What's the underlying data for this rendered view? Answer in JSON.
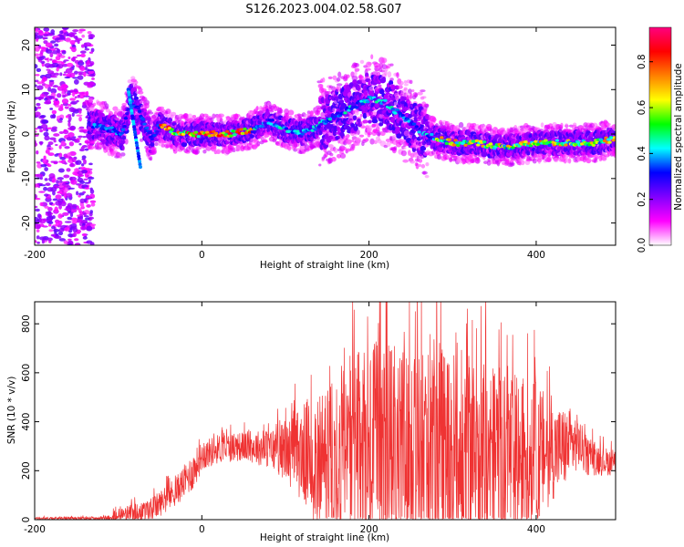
{
  "page": {
    "title": "S126.2023.004.02.58.G07"
  },
  "chart_data": [
    {
      "type": "heatmap",
      "xlabel": "Height of straight line (km)",
      "ylabel": "Frequency (Hz)",
      "xlim": [
        -200,
        495
      ],
      "ylim": [
        -25,
        24
      ],
      "x_ticks": [
        -200,
        0,
        200,
        400
      ],
      "y_ticks": [
        -20,
        -10,
        0,
        10,
        20
      ],
      "colorbar": {
        "label": "Normalized spectral amplitude",
        "range": [
          0,
          0.95
        ],
        "ticks": [
          0.0,
          0.2,
          0.4,
          0.6,
          0.8
        ],
        "colors": [
          "#ffffff",
          "#ff00ff",
          "#8000ff",
          "#0000ff",
          "#00ffff",
          "#00ff00",
          "#ffff00",
          "#ff8000",
          "#ff0000",
          "#ff0080"
        ]
      },
      "ridge": {
        "x": [
          -160,
          -130,
          -110,
          -95,
          -85,
          -75,
          -60,
          -50,
          -30,
          0,
          30,
          60,
          80,
          100,
          120,
          140,
          160,
          180,
          200,
          220,
          240,
          260,
          280,
          300,
          330,
          360,
          400,
          440,
          470,
          495
        ],
        "freq": [
          2,
          2,
          1,
          0,
          8,
          5,
          -1,
          2,
          0,
          0,
          0,
          1,
          3,
          1,
          0,
          2,
          4,
          6,
          8,
          7,
          4,
          1,
          -1,
          -2,
          -2,
          -3,
          -2,
          -2,
          -2,
          -1
        ]
      }
    },
    {
      "type": "line",
      "xlabel": "Height of straight line (km)",
      "ylabel": "SNR (10 * v/v)",
      "xlim": [
        -200,
        495
      ],
      "ylim": [
        0,
        890
      ],
      "x_ticks": [
        -200,
        0,
        200,
        400
      ],
      "y_ticks": [
        0,
        200,
        400,
        600,
        800
      ],
      "color": "#ef3333",
      "envelope": {
        "x": [
          -200,
          -120,
          -100,
          -60,
          -30,
          -10,
          0,
          20,
          50,
          80,
          100,
          120,
          140,
          160,
          180,
          200,
          220,
          240,
          260,
          280,
          300,
          320,
          340,
          360,
          380,
          400,
          420,
          440,
          450,
          460,
          480,
          495
        ],
        "base": [
          5,
          5,
          15,
          40,
          120,
          200,
          260,
          290,
          300,
          290,
          280,
          270,
          250,
          250,
          260,
          270,
          280,
          260,
          270,
          280,
          270,
          260,
          260,
          250,
          260,
          270,
          280,
          300,
          320,
          260,
          240,
          230
        ],
        "spread": [
          5,
          8,
          30,
          50,
          60,
          80,
          60,
          60,
          60,
          80,
          120,
          200,
          300,
          380,
          420,
          450,
          460,
          450,
          460,
          470,
          440,
          420,
          400,
          380,
          340,
          300,
          200,
          150,
          110,
          80,
          60,
          50
        ]
      }
    }
  ]
}
